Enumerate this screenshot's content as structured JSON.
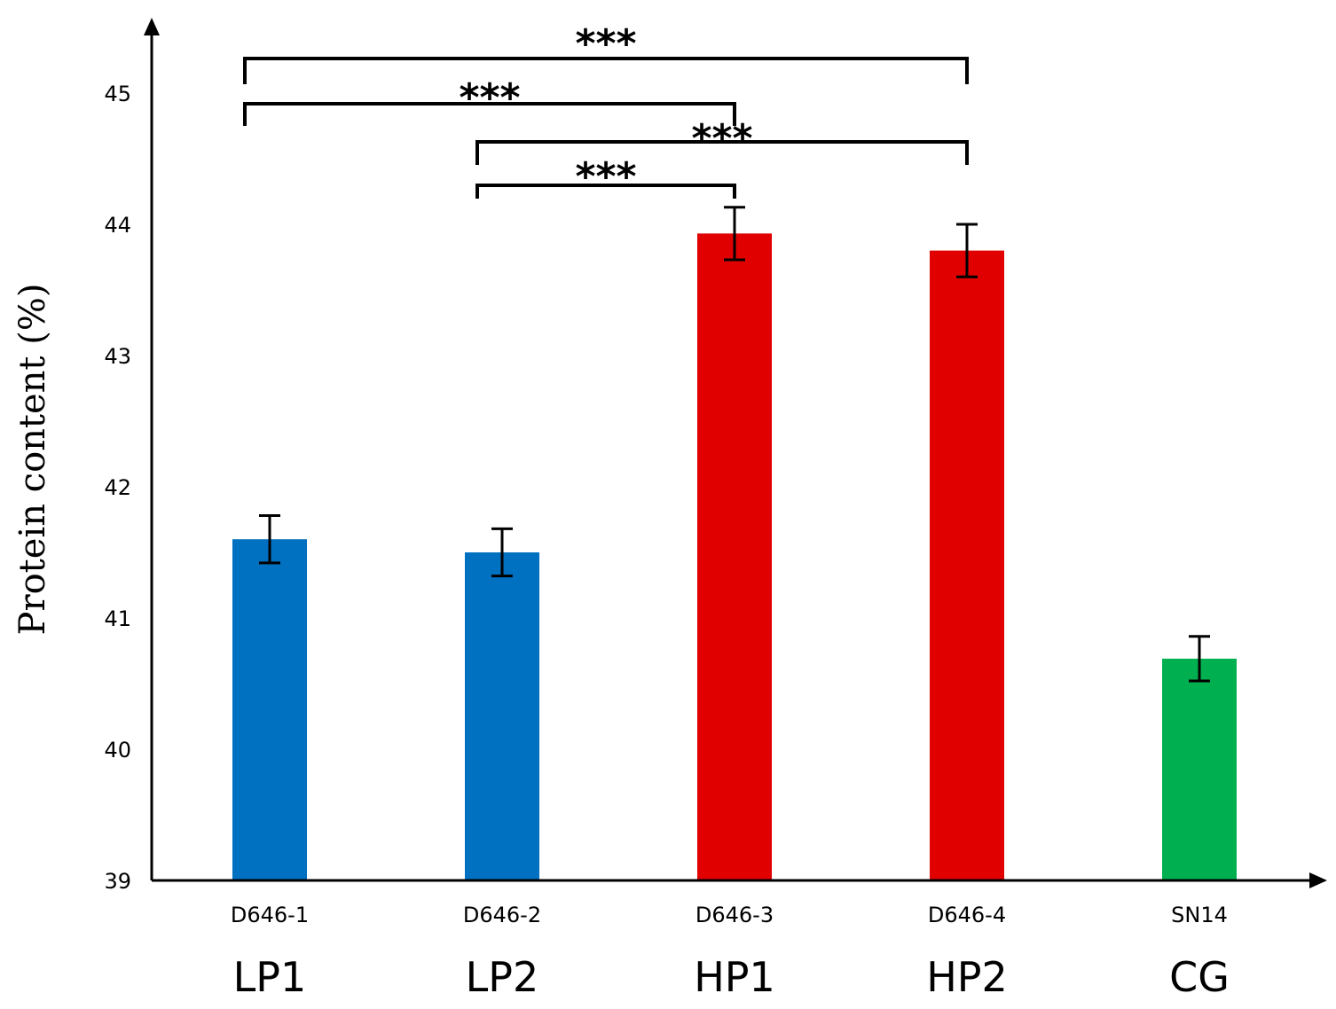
{
  "chart_data": {
    "type": "bar",
    "ylabel": "Protein content (%)",
    "xlabel": "",
    "ylim": [
      39,
      45.6
    ],
    "yticks": [
      39,
      40,
      41,
      42,
      43,
      44,
      45
    ],
    "grid": false,
    "legend": "none",
    "categories": [
      "D646-1",
      "D646-2",
      "D646-3",
      "D646-4",
      "SN14"
    ],
    "group_labels": [
      "LP1",
      "LP2",
      "HP1",
      "HP2",
      "CG"
    ],
    "values": [
      41.6,
      41.5,
      43.93,
      43.8,
      40.69
    ],
    "errors": [
      0.18,
      0.18,
      0.2,
      0.2,
      0.17
    ],
    "colors": [
      "#0070C0",
      "#0070C0",
      "#E00000",
      "#E00000",
      "#00B050"
    ],
    "significance": [
      {
        "from": 0,
        "to": 3,
        "label": "***"
      },
      {
        "from": 0,
        "to": 2,
        "label": "***"
      },
      {
        "from": 1,
        "to": 3,
        "label": "***"
      },
      {
        "from": 1,
        "to": 2,
        "label": "***"
      }
    ]
  }
}
